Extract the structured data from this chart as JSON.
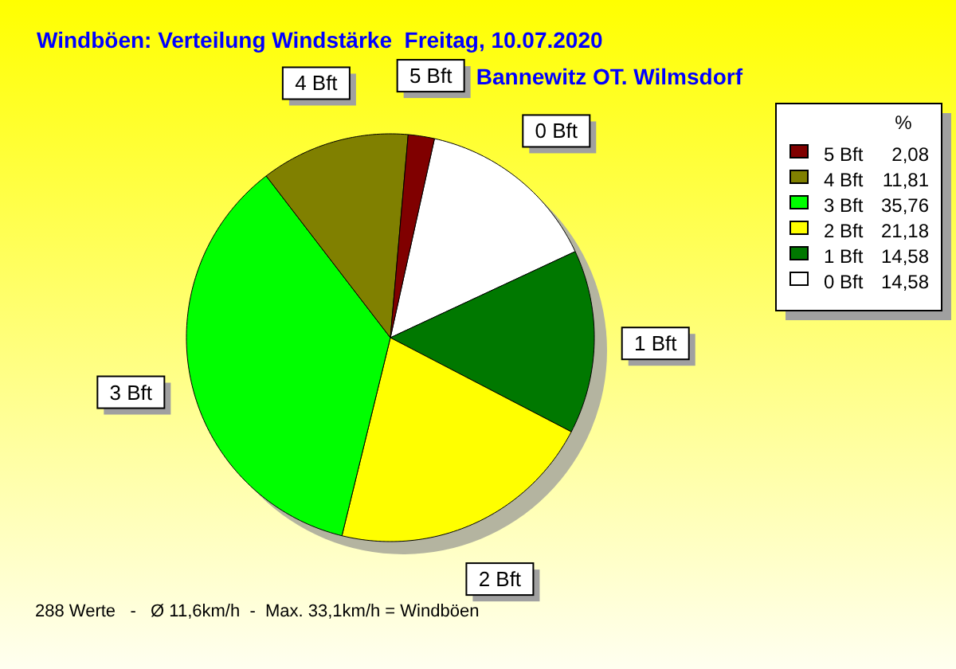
{
  "chart_data": {
    "type": "pie",
    "title": "Windböen: Verteilung Windstärke  Freitag, 10.07.2020",
    "subtitle": "Bannewitz OT. Wilmsdorf",
    "categories": [
      "0 Bft",
      "1 Bft",
      "2 Bft",
      "3 Bft",
      "4 Bft",
      "5 Bft"
    ],
    "values": [
      14.58,
      14.58,
      21.18,
      35.76,
      11.81,
      2.08
    ],
    "value_labels": [
      "14,58",
      "14,58",
      "21,18",
      "35,76",
      "11,81",
      "2,08"
    ],
    "colors": [
      "#ffffff",
      "#007800",
      "#ffff00",
      "#00ff00",
      "#808000",
      "#800000"
    ],
    "legend": "right",
    "legend_title": "%",
    "annotations": [
      "288 Werte   -   Ø 11,6km/h  -  Max. 33,1km/h = Windböen"
    ]
  }
}
